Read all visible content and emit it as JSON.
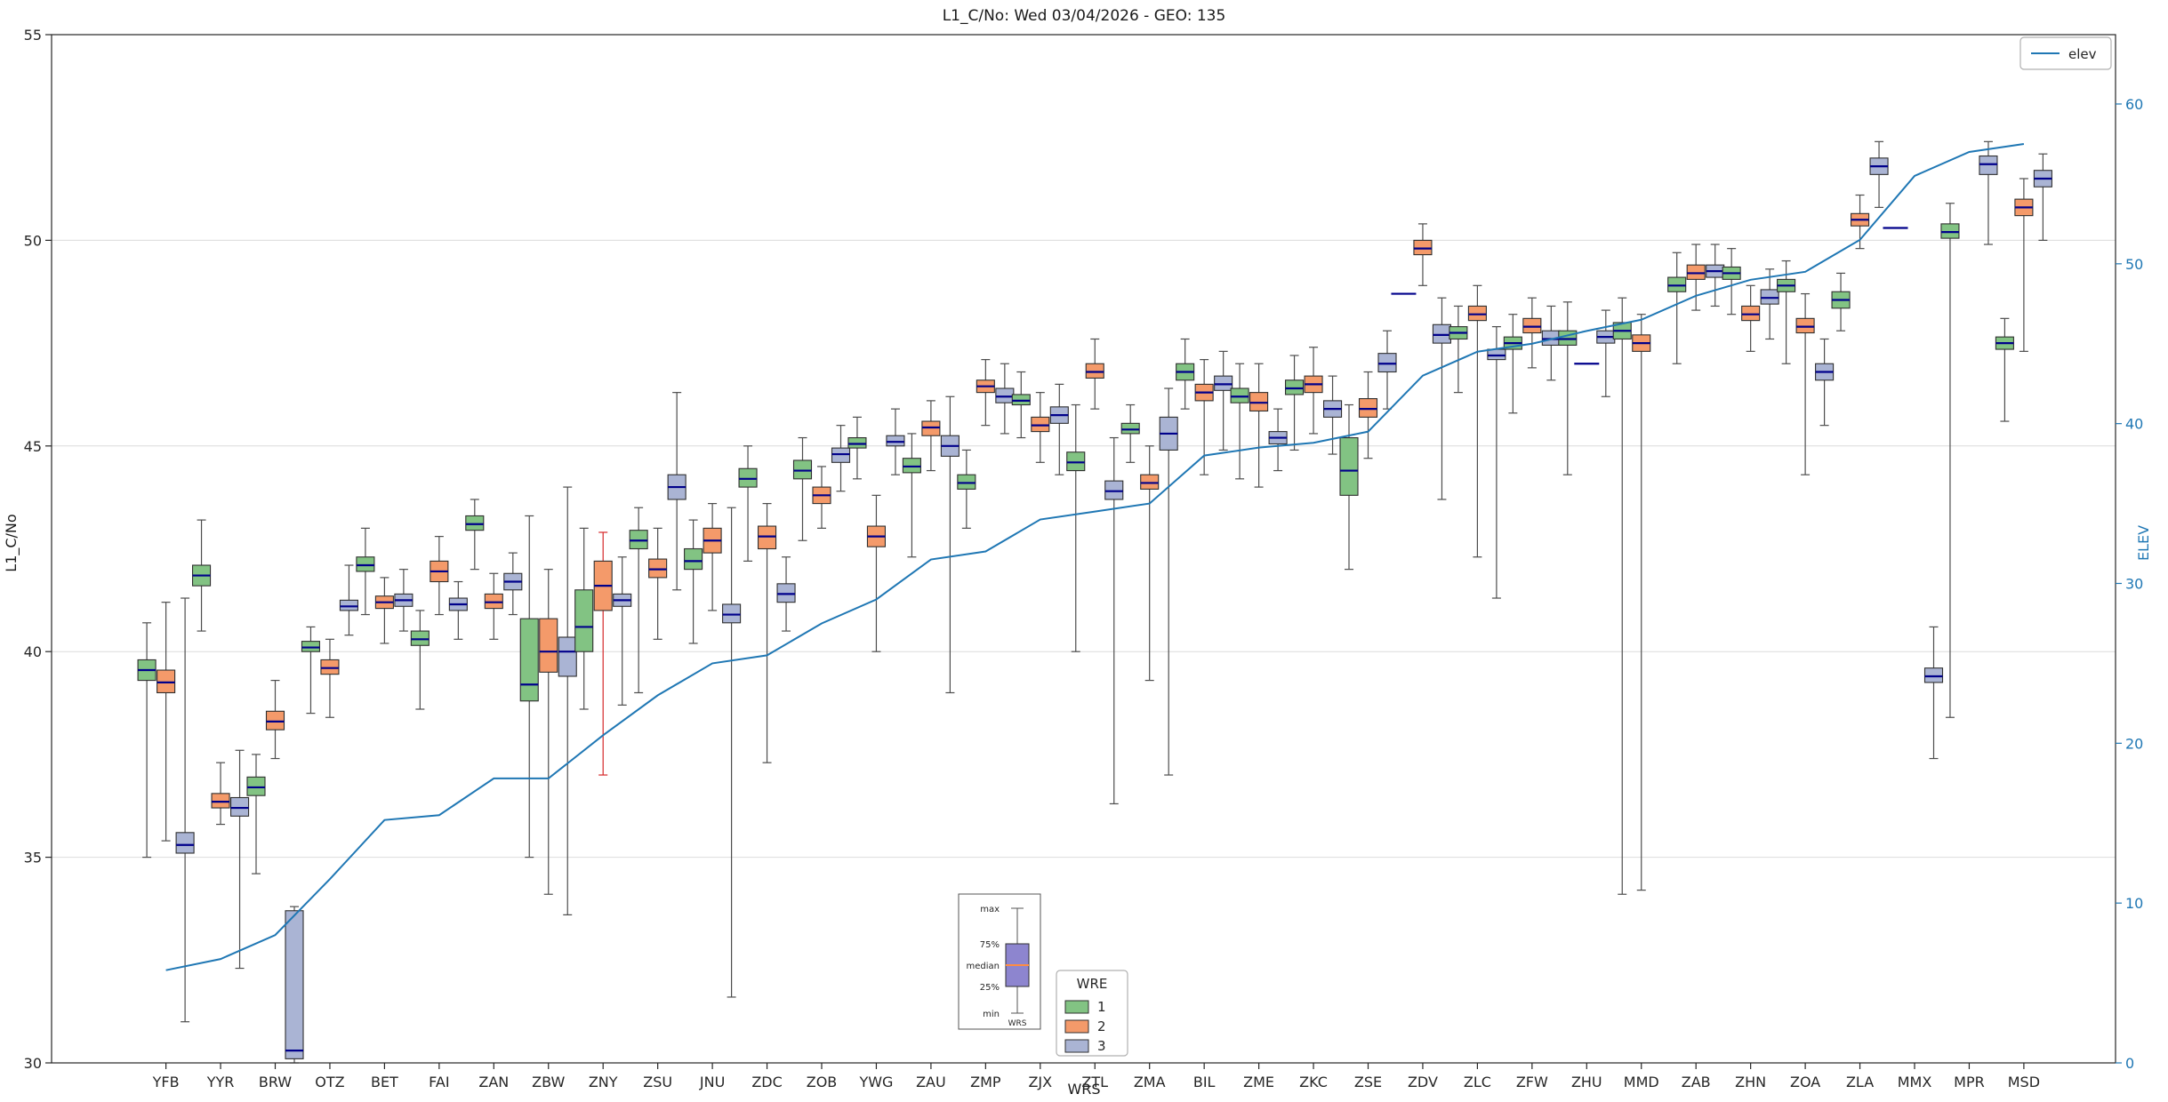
{
  "chart_data": {
    "type": "boxplot",
    "title": "L1_C/No: Wed 03/04/2026 - GEO: 135",
    "xlabel": "WRS",
    "ylabel_left": "L1_C/No",
    "ylabel_right": "ELEV",
    "ylim_left": [
      30,
      55
    ],
    "ylim_right": [
      0,
      60
    ],
    "left_ticks": [
      30,
      35,
      40,
      45,
      50,
      55
    ],
    "right_ticks": [
      0,
      10,
      20,
      30,
      40,
      50,
      60
    ],
    "grid": "horizontal",
    "colors": {
      "wre1": "#82c383",
      "wre2": "#f49a6a",
      "wre3": "#aab4d4",
      "median": "#00008b",
      "whisker": "#4d4d4d",
      "whisker_alt": "#d62728",
      "elev_line": "#1f77b4",
      "inset_box": "#8d85cf",
      "inset_median": "#ff8c42"
    },
    "line_legend": {
      "label": "elev"
    },
    "legend": {
      "title": "WRE",
      "entries": [
        {
          "label": "1",
          "color": "#82c383"
        },
        {
          "label": "2",
          "color": "#f49a6a"
        },
        {
          "label": "3",
          "color": "#aab4d4"
        }
      ]
    },
    "inset": {
      "labels": [
        "max",
        "75%",
        "median",
        "25%",
        "min",
        "WRS"
      ]
    },
    "stations": [
      "YFB",
      "YYR",
      "BRW",
      "OTZ",
      "BET",
      "FAI",
      "ZAN",
      "ZBW",
      "ZNY",
      "ZSU",
      "JNU",
      "ZDC",
      "ZOB",
      "YWG",
      "ZAU",
      "ZMP",
      "ZJX",
      "ZTL",
      "ZMA",
      "BIL",
      "ZME",
      "ZKC",
      "ZSE",
      "ZDV",
      "ZLC",
      "ZFW",
      "ZHU",
      "MMD",
      "ZAB",
      "ZHN",
      "ZOA",
      "ZLA",
      "MMX",
      "MPR",
      "MSD"
    ],
    "elev": [
      5.8,
      6.5,
      8,
      11.5,
      15.2,
      15.5,
      17.8,
      17.8,
      20.5,
      23,
      25,
      25.5,
      27.5,
      29,
      31.5,
      32,
      34,
      34.5,
      35,
      38,
      38.5,
      38.8,
      39.5,
      43,
      44.5,
      45,
      45.8,
      46.5,
      48,
      49,
      49.5,
      51.5,
      55.5,
      57,
      57.5
    ],
    "boxes": [
      [
        "YFB",
        1,
        35.0,
        39.3,
        39.55,
        39.8,
        40.7
      ],
      [
        "YFB",
        2,
        35.4,
        39.0,
        39.25,
        39.55,
        41.2
      ],
      [
        "YFB",
        3,
        31.0,
        35.1,
        35.3,
        35.6,
        41.3
      ],
      [
        "YYR",
        1,
        40.5,
        41.6,
        41.85,
        42.1,
        43.2
      ],
      [
        "YYR",
        2,
        35.8,
        36.2,
        36.35,
        36.55,
        37.3
      ],
      [
        "YYR",
        3,
        32.3,
        36.0,
        36.2,
        36.45,
        37.6
      ],
      [
        "BRW",
        1,
        34.6,
        36.5,
        36.7,
        36.95,
        37.5
      ],
      [
        "BRW",
        2,
        37.4,
        38.1,
        38.3,
        38.55,
        39.3
      ],
      [
        "BRW",
        3,
        30.0,
        30.1,
        30.3,
        33.7,
        33.8
      ],
      [
        "OTZ",
        1,
        38.5,
        40.0,
        40.1,
        40.25,
        40.6
      ],
      [
        "OTZ",
        2,
        38.4,
        39.45,
        39.6,
        39.8,
        40.3
      ],
      [
        "OTZ",
        3,
        40.4,
        41.0,
        41.1,
        41.25,
        42.1
      ],
      [
        "BET",
        1,
        40.9,
        41.95,
        42.1,
        42.3,
        43.0
      ],
      [
        "BET",
        2,
        40.2,
        41.05,
        41.2,
        41.35,
        41.8
      ],
      [
        "BET",
        3,
        40.5,
        41.1,
        41.25,
        41.4,
        42.0
      ],
      [
        "FAI",
        1,
        38.6,
        40.15,
        40.3,
        40.5,
        41.0
      ],
      [
        "FAI",
        2,
        40.9,
        41.7,
        41.95,
        42.2,
        42.8
      ],
      [
        "FAI",
        3,
        40.3,
        41.0,
        41.15,
        41.3,
        41.7
      ],
      [
        "ZAN",
        1,
        42.0,
        42.95,
        43.1,
        43.3,
        43.7
      ],
      [
        "ZAN",
        2,
        40.3,
        41.05,
        41.2,
        41.4,
        41.9
      ],
      [
        "ZAN",
        3,
        40.9,
        41.5,
        41.7,
        41.9,
        42.4
      ],
      [
        "ZBW",
        1,
        35.0,
        38.8,
        39.2,
        40.8,
        43.3
      ],
      [
        "ZBW",
        2,
        34.1,
        39.5,
        40.0,
        40.8,
        42.0
      ],
      [
        "ZBW",
        3,
        33.6,
        39.4,
        40.0,
        40.35,
        44.0
      ],
      [
        "ZNY",
        1,
        38.6,
        40.0,
        40.6,
        41.5,
        43.0
      ],
      [
        "ZNY",
        2,
        37.0,
        41.0,
        41.6,
        42.2,
        42.9,
        "alt"
      ],
      [
        "ZNY",
        3,
        38.7,
        41.1,
        41.25,
        41.4,
        42.3
      ],
      [
        "ZSU",
        1,
        39.0,
        42.5,
        42.7,
        42.95,
        43.5
      ],
      [
        "ZSU",
        2,
        40.3,
        41.8,
        42.0,
        42.25,
        43.0
      ],
      [
        "ZSU",
        3,
        41.5,
        43.7,
        44.0,
        44.3,
        46.3
      ],
      [
        "JNU",
        1,
        40.2,
        42.0,
        42.2,
        42.5,
        43.2
      ],
      [
        "JNU",
        2,
        41.0,
        42.4,
        42.7,
        43.0,
        43.6
      ],
      [
        "JNU",
        3,
        31.6,
        40.7,
        40.9,
        41.15,
        43.5
      ],
      [
        "ZDC",
        1,
        42.2,
        44.0,
        44.2,
        44.45,
        45.0
      ],
      [
        "ZDC",
        2,
        37.3,
        42.5,
        42.8,
        43.05,
        43.6
      ],
      [
        "ZDC",
        3,
        40.5,
        41.2,
        41.4,
        41.65,
        42.3
      ],
      [
        "ZOB",
        1,
        42.7,
        44.2,
        44.4,
        44.65,
        45.2
      ],
      [
        "ZOB",
        2,
        43.0,
        43.6,
        43.8,
        44.0,
        44.5
      ],
      [
        "ZOB",
        3,
        43.9,
        44.6,
        44.8,
        44.95,
        45.5
      ],
      [
        "YWG",
        1,
        44.2,
        44.95,
        45.05,
        45.2,
        45.7
      ],
      [
        "YWG",
        2,
        40.0,
        42.55,
        42.8,
        43.05,
        43.8
      ],
      [
        "YWG",
        3,
        44.3,
        45.0,
        45.1,
        45.25,
        45.9
      ],
      [
        "ZAU",
        1,
        42.3,
        44.35,
        44.5,
        44.7,
        45.3
      ],
      [
        "ZAU",
        2,
        44.4,
        45.25,
        45.45,
        45.6,
        46.1
      ],
      [
        "ZAU",
        3,
        39.0,
        44.75,
        45.0,
        45.25,
        46.2
      ],
      [
        "ZMP",
        1,
        43.0,
        43.95,
        44.1,
        44.3,
        44.9
      ],
      [
        "ZMP",
        2,
        45.5,
        46.3,
        46.45,
        46.6,
        47.1
      ],
      [
        "ZMP",
        3,
        45.3,
        46.05,
        46.2,
        46.4,
        47.0
      ],
      [
        "ZJX",
        1,
        45.2,
        46.0,
        46.1,
        46.25,
        46.8
      ],
      [
        "ZJX",
        2,
        44.6,
        45.35,
        45.5,
        45.7,
        46.3
      ],
      [
        "ZJX",
        3,
        44.3,
        45.55,
        45.75,
        45.95,
        46.5
      ],
      [
        "ZTL",
        1,
        40.0,
        44.4,
        44.6,
        44.85,
        46.0
      ],
      [
        "ZTL",
        2,
        45.9,
        46.65,
        46.8,
        47.0,
        47.6
      ],
      [
        "ZTL",
        3,
        36.3,
        43.7,
        43.9,
        44.15,
        45.2
      ],
      [
        "ZMA",
        1,
        44.6,
        45.3,
        45.4,
        45.55,
        46.0
      ],
      [
        "ZMA",
        2,
        39.3,
        43.95,
        44.1,
        44.3,
        45.0
      ],
      [
        "ZMA",
        3,
        37.0,
        44.9,
        45.3,
        45.7,
        46.4
      ],
      [
        "BIL",
        1,
        45.9,
        46.6,
        46.8,
        47.0,
        47.6
      ],
      [
        "BIL",
        2,
        44.3,
        46.1,
        46.3,
        46.5,
        47.1
      ],
      [
        "BIL",
        3,
        44.9,
        46.35,
        46.5,
        46.7,
        47.3
      ],
      [
        "ZME",
        1,
        44.2,
        46.05,
        46.2,
        46.4,
        47.0
      ],
      [
        "ZME",
        2,
        44.0,
        45.85,
        46.05,
        46.3,
        47.0
      ],
      [
        "ZME",
        3,
        44.4,
        45.05,
        45.2,
        45.35,
        45.9
      ],
      [
        "ZKC",
        1,
        44.9,
        46.25,
        46.4,
        46.6,
        47.2
      ],
      [
        "ZKC",
        2,
        45.3,
        46.3,
        46.5,
        46.7,
        47.4
      ],
      [
        "ZKC",
        3,
        44.8,
        45.7,
        45.9,
        46.1,
        46.7
      ],
      [
        "ZSE",
        1,
        42.0,
        43.8,
        44.4,
        45.2,
        46.0
      ],
      [
        "ZSE",
        2,
        44.7,
        45.7,
        45.9,
        46.15,
        46.8
      ],
      [
        "ZSE",
        3,
        45.9,
        46.8,
        47.0,
        47.25,
        47.8
      ],
      [
        "ZDV",
        1,
        48.7,
        48.7,
        48.7,
        48.7,
        48.7
      ],
      [
        "ZDV",
        2,
        48.9,
        49.65,
        49.8,
        50.0,
        50.4
      ],
      [
        "ZDV",
        3,
        43.7,
        47.5,
        47.7,
        47.95,
        48.6
      ],
      [
        "ZLC",
        1,
        46.3,
        47.6,
        47.75,
        47.9,
        48.4
      ],
      [
        "ZLC",
        2,
        42.3,
        48.05,
        48.2,
        48.4,
        48.9
      ],
      [
        "ZLC",
        3,
        41.3,
        47.1,
        47.2,
        47.35,
        47.9
      ],
      [
        "ZFW",
        1,
        45.8,
        47.35,
        47.5,
        47.65,
        48.2
      ],
      [
        "ZFW",
        2,
        46.9,
        47.75,
        47.9,
        48.1,
        48.6
      ],
      [
        "ZFW",
        3,
        46.6,
        47.45,
        47.6,
        47.8,
        48.4
      ],
      [
        "ZHU",
        1,
        44.3,
        47.45,
        47.6,
        47.8,
        48.5
      ],
      [
        "ZHU",
        2,
        47.0,
        47.0,
        47.0,
        47.0,
        47.0
      ],
      [
        "ZHU",
        3,
        46.2,
        47.5,
        47.65,
        47.8,
        48.3
      ],
      [
        "MMD",
        1,
        34.1,
        47.6,
        47.8,
        48.0,
        48.6
      ],
      [
        "MMD",
        2,
        34.2,
        47.3,
        47.5,
        47.7,
        48.2
      ],
      [
        "ZAB",
        1,
        47.0,
        48.75,
        48.9,
        49.1,
        49.7
      ],
      [
        "ZAB",
        2,
        48.3,
        49.05,
        49.2,
        49.4,
        49.9
      ],
      [
        "ZAB",
        3,
        48.4,
        49.1,
        49.25,
        49.4,
        49.9
      ],
      [
        "ZHN",
        1,
        48.2,
        49.05,
        49.2,
        49.35,
        49.8
      ],
      [
        "ZHN",
        2,
        47.3,
        48.05,
        48.2,
        48.4,
        48.9
      ],
      [
        "ZHN",
        3,
        47.6,
        48.45,
        48.6,
        48.8,
        49.3
      ],
      [
        "ZOA",
        1,
        47.0,
        48.75,
        48.9,
        49.05,
        49.5
      ],
      [
        "ZOA",
        2,
        44.3,
        47.75,
        47.9,
        48.1,
        48.7
      ],
      [
        "ZOA",
        3,
        45.5,
        46.6,
        46.8,
        47.0,
        47.6
      ],
      [
        "ZLA",
        1,
        47.8,
        48.35,
        48.55,
        48.75,
        49.2
      ],
      [
        "ZLA",
        2,
        49.8,
        50.35,
        50.5,
        50.65,
        51.1
      ],
      [
        "ZLA",
        3,
        50.8,
        51.6,
        51.8,
        52.0,
        52.4
      ],
      [
        "MMX",
        1,
        50.3,
        50.3,
        50.3,
        50.3,
        50.3
      ],
      [
        "MMX",
        3,
        37.4,
        39.25,
        39.4,
        39.6,
        40.6
      ],
      [
        "MPR",
        1,
        38.4,
        50.05,
        50.2,
        50.4,
        50.9
      ],
      [
        "MPR",
        3,
        49.9,
        51.6,
        51.85,
        52.05,
        52.4
      ],
      [
        "MSD",
        1,
        45.6,
        47.35,
        47.5,
        47.65,
        48.1
      ],
      [
        "MSD",
        2,
        47.3,
        50.6,
        50.8,
        51.0,
        51.5
      ],
      [
        "MSD",
        3,
        50.0,
        51.3,
        51.5,
        51.7,
        52.1
      ]
    ]
  }
}
